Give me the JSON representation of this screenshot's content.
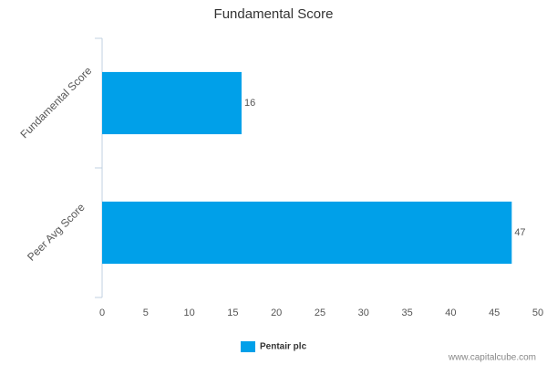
{
  "chart_data": {
    "type": "bar",
    "title": "Fundamental Score",
    "categories": [
      "Fundamental Score",
      "Peer Avg Score"
    ],
    "series": [
      {
        "name": "Pentair plc",
        "color": "#00a0e9",
        "values": [
          16,
          47
        ]
      }
    ],
    "xlim": [
      0,
      50
    ],
    "xticks": [
      0,
      5,
      10,
      15,
      20,
      25,
      30,
      35,
      40,
      45,
      50
    ],
    "legend": "bottom",
    "watermark": "www.capitalcube.com"
  }
}
